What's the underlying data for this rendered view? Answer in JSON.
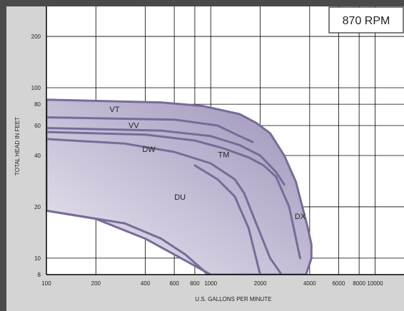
{
  "chart_data": {
    "type": "area",
    "title": "870 RPM",
    "xlabel": "U.S. GALLONS PER MINUTE",
    "ylabel": "TOTAL HEAD IN FEET",
    "xscale": "log",
    "yscale": "log",
    "xlim": [
      100,
      15000
    ],
    "ylim": [
      8,
      300
    ],
    "xticks": [
      {
        "value": 100,
        "label": "100"
      },
      {
        "value": 200,
        "label": "200"
      },
      {
        "value": 400,
        "label": "400"
      },
      {
        "value": 600,
        "label": "600"
      },
      {
        "value": 800,
        "label": "800"
      },
      {
        "value": 1000,
        "label": "1000"
      },
      {
        "value": 2000,
        "label": "2000"
      },
      {
        "value": 4000,
        "label": "4000"
      },
      {
        "value": 6000,
        "label": "6000"
      },
      {
        "value": 8000,
        "label": "8000"
      },
      {
        "value": 10000,
        "label": "10000"
      }
    ],
    "yticks": [
      {
        "value": 8,
        "label": "8"
      },
      {
        "value": 10,
        "label": "10"
      },
      {
        "value": 20,
        "label": "20"
      },
      {
        "value": 40,
        "label": "40"
      },
      {
        "value": 60,
        "label": "60"
      },
      {
        "value": 80,
        "label": "80"
      },
      {
        "value": 100,
        "label": "100"
      },
      {
        "value": 200,
        "label": "200"
      }
    ],
    "grid": true,
    "envelope": {
      "x": [
        100,
        500,
        900,
        1500,
        1900,
        2300,
        2800,
        3300,
        3900,
        4100,
        4100,
        3800,
        1000,
        600,
        400,
        200,
        100
      ],
      "y": [
        85,
        82,
        78,
        70,
        62,
        54,
        40,
        28,
        15,
        12,
        10,
        8,
        8,
        10.5,
        13,
        17,
        19
      ]
    },
    "curves": [
      {
        "x": [
          100,
          600,
          1100,
          1500,
          1800
        ],
        "y": [
          67,
          65,
          60,
          52,
          48
        ]
      },
      {
        "x": [
          100,
          500,
          1000,
          1500,
          2000,
          2500,
          2800
        ],
        "y": [
          58,
          56,
          52,
          46,
          40,
          32,
          27
        ]
      },
      {
        "x": [
          100,
          400,
          800,
          1200,
          1700,
          2100,
          2500,
          3000,
          3500
        ],
        "y": [
          55,
          53,
          49,
          44,
          39,
          35,
          30,
          20,
          10
        ]
      },
      {
        "x": [
          100,
          300,
          600,
          1000,
          1400,
          1600,
          1800,
          2000,
          2300,
          2700
        ],
        "y": [
          50,
          47,
          42,
          36,
          29,
          24,
          18,
          14,
          10,
          8
        ]
      },
      {
        "x": [
          800,
          1100,
          1400,
          1700,
          2000
        ],
        "y": [
          35,
          29,
          23,
          15,
          8
        ]
      },
      {
        "x": [
          100,
          300,
          500,
          700,
          900,
          1100
        ],
        "y": [
          19,
          16,
          13,
          10.5,
          8.5,
          7
        ]
      }
    ],
    "regions": [
      {
        "label": "VT",
        "x": 260,
        "y": 72
      },
      {
        "label": "VV",
        "x": 340,
        "y": 58
      },
      {
        "label": "DW",
        "x": 420,
        "y": 42
      },
      {
        "label": "TM",
        "x": 1200,
        "y": 39
      },
      {
        "label": "DU",
        "x": 650,
        "y": 22
      },
      {
        "label": "DX",
        "x": 3500,
        "y": 17
      }
    ],
    "colors": {
      "fill_light": "#ece8f2",
      "fill_dark": "#9d92b9",
      "curve": "#776c98",
      "grid": "#000000",
      "background": "#ffffff"
    }
  }
}
